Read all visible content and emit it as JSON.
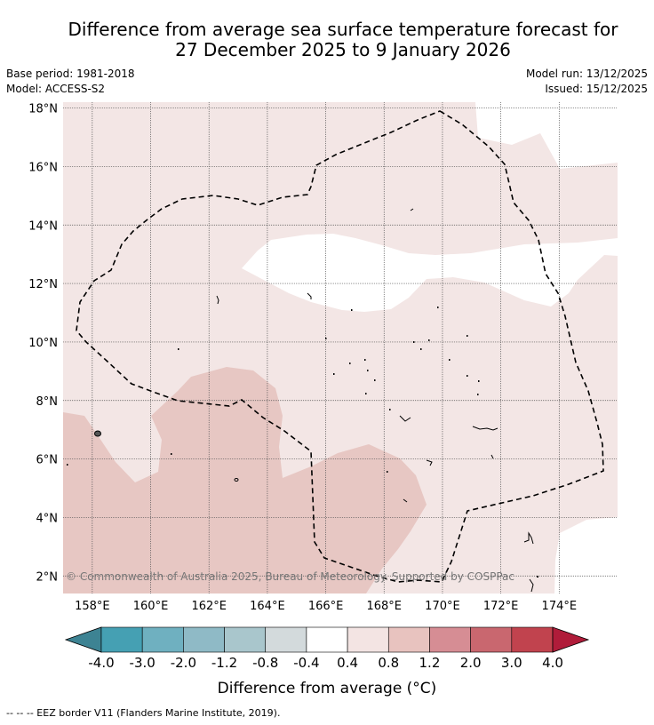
{
  "title": {
    "line1": "Difference from average sea surface temperature forecast for",
    "line2": "27 December 2025 to 9 January 2026"
  },
  "meta": {
    "base_period": "Base period: 1981-2018",
    "model": "Model: ACCESS-S2",
    "model_run": "Model run: 13/12/2025",
    "issued": "Issued: 15/12/2025"
  },
  "map": {
    "lon_ticks": [
      "158°E",
      "160°E",
      "162°E",
      "164°E",
      "166°E",
      "168°E",
      "170°E",
      "172°E",
      "174°E"
    ],
    "lat_ticks": [
      "18°N",
      "16°N",
      "14°N",
      "12°N",
      "10°N",
      "8°N",
      "6°N",
      "4°N",
      "2°N"
    ],
    "lon_range": [
      157.0,
      176.0
    ],
    "lat_range": [
      1.4,
      18.2
    ],
    "copyright": "© Commonwealth of Australia 2025, Bureau of Meteorology. Supported by COSPPac"
  },
  "colorbar": {
    "labels": [
      "-4.0",
      "-3.0",
      "-2.0",
      "-1.2",
      "-0.8",
      "-0.4",
      "0.4",
      "0.8",
      "1.2",
      "2.0",
      "3.0",
      "4.0"
    ],
    "colors": [
      "#45a0b3",
      "#6fb0c0",
      "#8fbac6",
      "#a9c6cc",
      "#d3dadc",
      "#ffffff",
      "#f3e4e3",
      "#e8c3bf",
      "#d68d94",
      "#c9676f",
      "#c1434e"
    ],
    "under_color": "#3d8393",
    "over_color": "#b01c3a",
    "label": "Difference from average (°C)"
  },
  "footnote": "-- -- -- EEZ border V11 (Flanders Marine Institute, 2019).",
  "colors": {
    "base_fill": "#f3e6e5",
    "neutral_fill": "#ffffff",
    "warm_fill": "#e7c7c3",
    "grid": "#555555",
    "eez_border": "#000000"
  }
}
